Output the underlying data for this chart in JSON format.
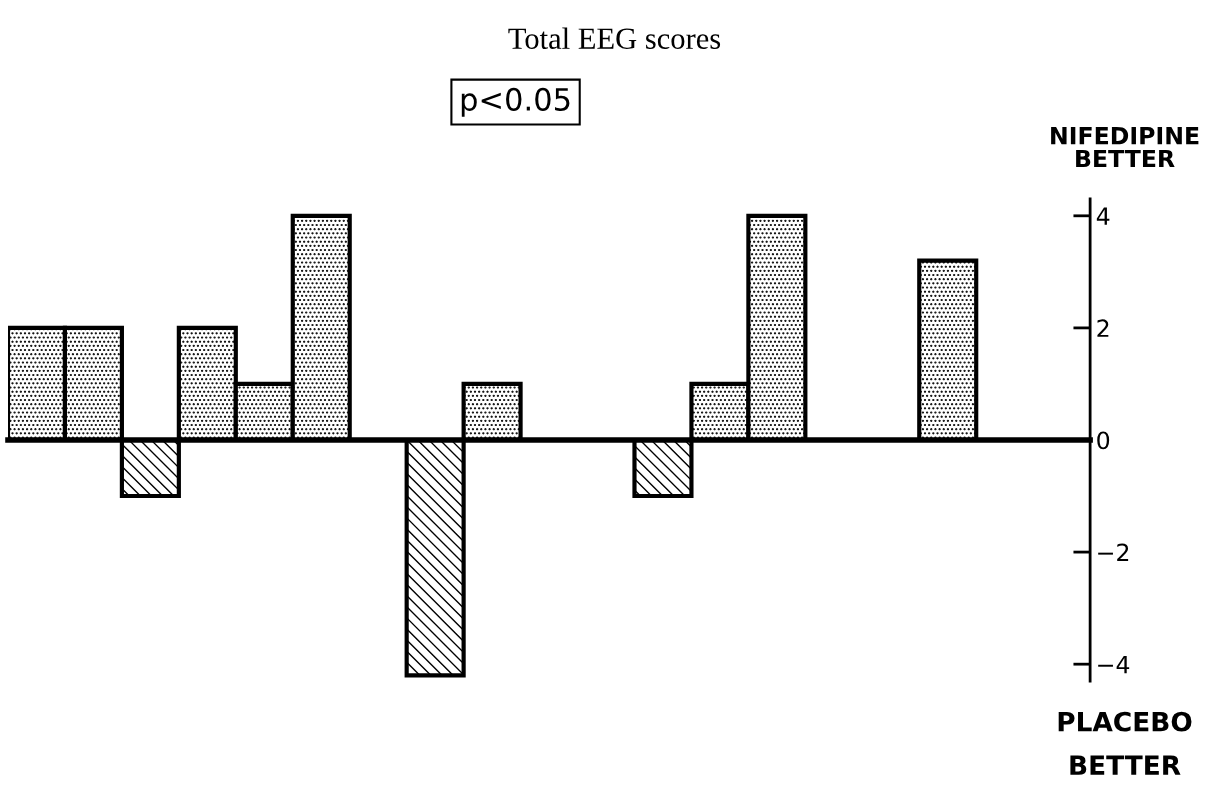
{
  "chart_data": {
    "type": "bar",
    "title": "Total EEG scores",
    "subtitle": "p<0.05",
    "categories": [
      null,
      null,
      null,
      null,
      null,
      null,
      null,
      null,
      null,
      null,
      null,
      null,
      null,
      null,
      null,
      null,
      null,
      null,
      null
    ],
    "values": [
      2,
      2,
      -1,
      2,
      1,
      4,
      0,
      -4.2,
      1,
      0,
      0,
      -1,
      1,
      4,
      0,
      0,
      3.2,
      0,
      0
    ],
    "ylim": [
      -4.3,
      4.3
    ],
    "yticks": [
      {
        "value": -4,
        "label": "−4"
      },
      {
        "value": -2,
        "label": "−2"
      },
      0,
      2,
      4
    ],
    "annotations": [
      "NIFEDIPINE\nBETTER",
      "PLACEBO\nBETTER"
    ],
    "tick_labels": "y",
    "legend": false
  }
}
